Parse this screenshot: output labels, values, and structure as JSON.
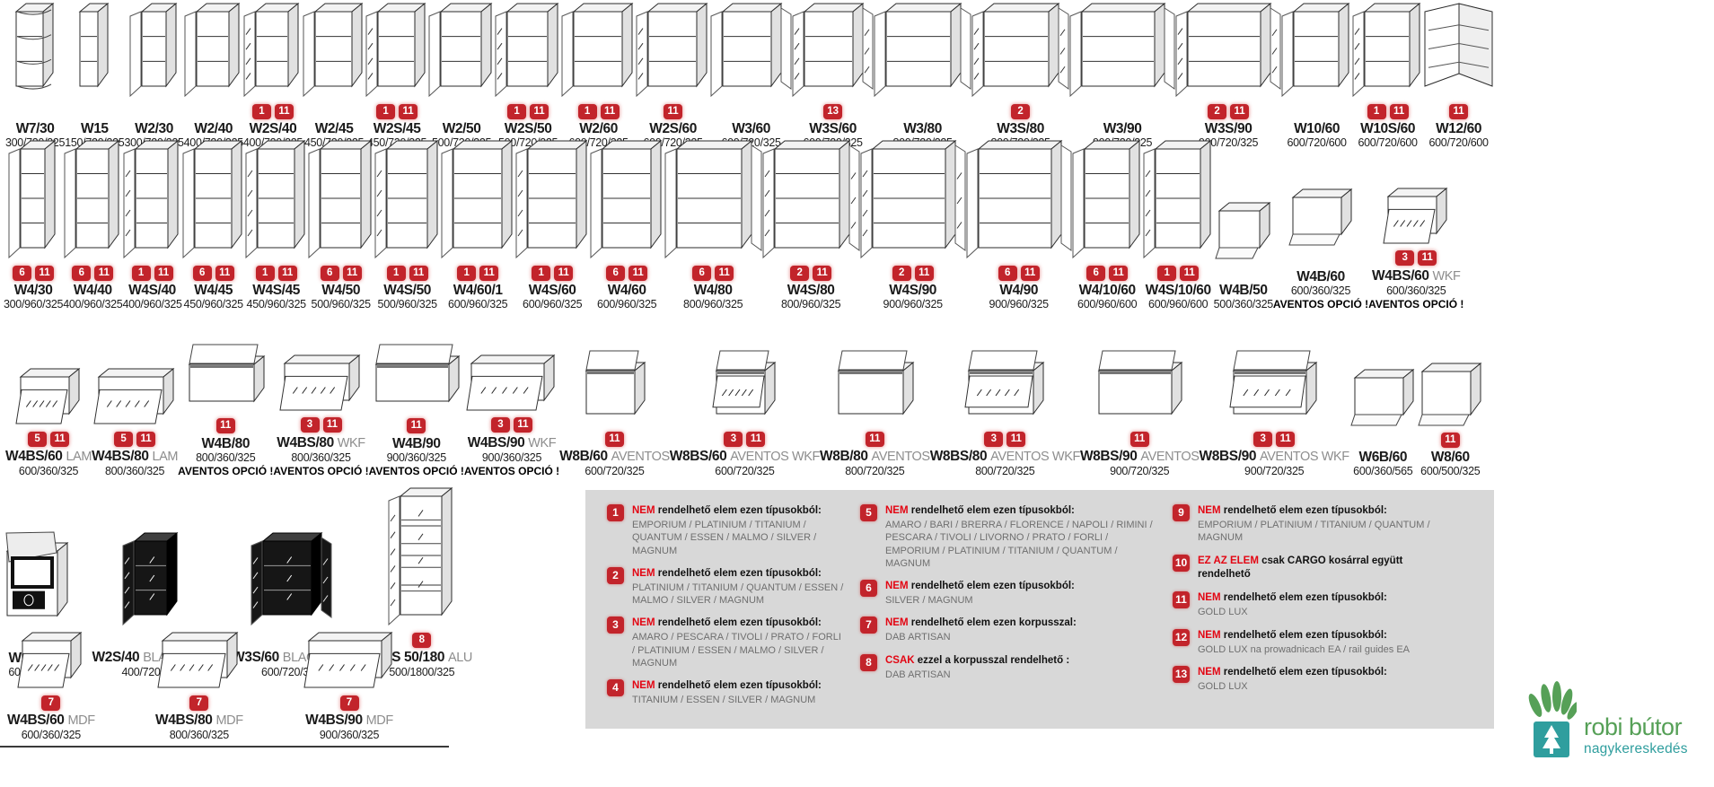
{
  "colors": {
    "badge_red": "#c2242b",
    "legend_bg": "#d8d8d8",
    "legend_red": "#e30613",
    "logo_green": "#56a057",
    "logo_teal": "#2f9e9e"
  },
  "rows": [
    {
      "name": "wall-cabinets-row-1",
      "items": [
        {
          "code": "W7/30",
          "suffix": "",
          "dims": "300/720/325",
          "badges": [],
          "type": "cornerEnd"
        },
        {
          "code": "W15",
          "suffix": "",
          "dims": "150/720/325",
          "badges": [],
          "type": "openNarrow"
        },
        {
          "code": "W2/30",
          "suffix": "",
          "dims": "300/720/325",
          "badges": [],
          "type": "door"
        },
        {
          "code": "W2/40",
          "suffix": "",
          "dims": "400/720/325",
          "badges": [],
          "type": "door"
        },
        {
          "code": "W2S/40",
          "suffix": "",
          "dims": "400/720/325",
          "badges": [
            "1",
            "11"
          ],
          "type": "glass"
        },
        {
          "code": "W2/45",
          "suffix": "",
          "dims": "450/720/325",
          "badges": [],
          "type": "door"
        },
        {
          "code": "W2S/45",
          "suffix": "",
          "dims": "450/720/325",
          "badges": [
            "1",
            "11"
          ],
          "type": "glass"
        },
        {
          "code": "W2/50",
          "suffix": "",
          "dims": "500/720/325",
          "badges": [],
          "type": "door"
        },
        {
          "code": "W2S/50",
          "suffix": "",
          "dims": "500/720/325",
          "badges": [
            "1",
            "11"
          ],
          "type": "glass"
        },
        {
          "code": "W2/60",
          "suffix": "",
          "dims": "600/720/325",
          "badges": [
            "1",
            "11"
          ],
          "type": "door"
        },
        {
          "code": "W2S/60",
          "suffix": "",
          "dims": "600/720/325",
          "badges": [
            "11"
          ],
          "type": "glass"
        },
        {
          "code": "W3/60",
          "suffix": "",
          "dims": "600/720/325",
          "badges": [],
          "type": "door2"
        },
        {
          "code": "W3S/60",
          "suffix": "",
          "dims": "600/720/325",
          "badges": [
            "13"
          ],
          "type": "glass2"
        },
        {
          "code": "W3/80",
          "suffix": "",
          "dims": "800/720/325",
          "badges": [],
          "type": "door2"
        },
        {
          "code": "W3S/80",
          "suffix": "",
          "dims": "800/720/325",
          "badges": [
            "2"
          ],
          "type": "glass2"
        },
        {
          "code": "W3/90",
          "suffix": "",
          "dims": "900/720/325",
          "badges": [],
          "type": "door2"
        },
        {
          "code": "W3S/90",
          "suffix": "",
          "dims": "900/720/325",
          "badges": [
            "2",
            "11"
          ],
          "type": "glass2"
        },
        {
          "code": "W10/60",
          "suffix": "",
          "dims": "600/720/600",
          "badges": [],
          "type": "cornerDoor"
        },
        {
          "code": "W10S/60",
          "suffix": "",
          "dims": "600/720/600",
          "badges": [
            "1",
            "11"
          ],
          "type": "cornerGlass"
        },
        {
          "code": "W12/60",
          "suffix": "",
          "dims": "600/720/600",
          "badges": [
            "11"
          ],
          "type": "cornerL"
        }
      ]
    },
    {
      "name": "wall-cabinets-row-2",
      "items": [
        {
          "code": "W4/30",
          "suffix": "",
          "dims": "300/960/325",
          "badges": [
            "6",
            "11"
          ],
          "type": "door"
        },
        {
          "code": "W4/40",
          "suffix": "",
          "dims": "400/960/325",
          "badges": [
            "6",
            "11"
          ],
          "type": "door"
        },
        {
          "code": "W4S/40",
          "suffix": "",
          "dims": "400/960/325",
          "badges": [
            "1",
            "11"
          ],
          "type": "glass"
        },
        {
          "code": "W4/45",
          "suffix": "",
          "dims": "450/960/325",
          "badges": [
            "6",
            "11"
          ],
          "type": "door"
        },
        {
          "code": "W4S/45",
          "suffix": "",
          "dims": "450/960/325",
          "badges": [
            "1",
            "11"
          ],
          "type": "glass"
        },
        {
          "code": "W4/50",
          "suffix": "",
          "dims": "500/960/325",
          "badges": [
            "6",
            "11"
          ],
          "type": "door"
        },
        {
          "code": "W4S/50",
          "suffix": "",
          "dims": "500/960/325",
          "badges": [
            "1",
            "11"
          ],
          "type": "glass"
        },
        {
          "code": "W4/60/1",
          "suffix": "",
          "dims": "600/960/325",
          "badges": [
            "1",
            "11"
          ],
          "type": "door"
        },
        {
          "code": "W4S/60",
          "suffix": "",
          "dims": "600/960/325",
          "badges": [
            "1",
            "11"
          ],
          "type": "glass"
        },
        {
          "code": "W4/60",
          "suffix": "",
          "dims": "600/960/325",
          "badges": [
            "6",
            "11"
          ],
          "type": "door"
        },
        {
          "code": "W4/80",
          "suffix": "",
          "dims": "800/960/325",
          "badges": [
            "6",
            "11"
          ],
          "type": "door2"
        },
        {
          "code": "W4S/80",
          "suffix": "",
          "dims": "800/960/325",
          "badges": [
            "2",
            "11"
          ],
          "type": "glass2"
        },
        {
          "code": "W4S/90",
          "suffix": "",
          "dims": "900/960/325",
          "badges": [
            "2",
            "11"
          ],
          "type": "glass2"
        },
        {
          "code": "W4/90",
          "suffix": "",
          "dims": "900/960/325",
          "badges": [
            "6",
            "11"
          ],
          "type": "door2"
        },
        {
          "code": "W4/10/60",
          "suffix": "",
          "dims": "600/960/600",
          "badges": [
            "6",
            "11"
          ],
          "type": "cornerDoor"
        },
        {
          "code": "W4S/10/60",
          "suffix": "",
          "dims": "600/960/600",
          "badges": [
            "1",
            "11"
          ],
          "type": "cornerGlass"
        },
        {
          "code": "W4B/50",
          "suffix": "",
          "dims": "500/360/325",
          "badges": [],
          "type": "flip"
        },
        {
          "code": "W4B/60",
          "suffix": "",
          "dims": "600/360/325",
          "badges": [],
          "type": "flip",
          "note": "AVENTOS OPCIÓ !"
        },
        {
          "code": "W4BS/60",
          "suffix": "WKF",
          "dims": "600/360/325",
          "badges": [
            "3",
            "11"
          ],
          "type": "flipGlass",
          "note": "AVENTOS OPCIÓ !"
        }
      ]
    },
    {
      "name": "wall-cabinets-row-3",
      "items": [
        {
          "code": "W4BS/60",
          "suffix": "LAM",
          "dims": "600/360/325",
          "badges": [
            "5",
            "11"
          ],
          "type": "flipGlass"
        },
        {
          "code": "W4BS/80",
          "suffix": "LAM",
          "dims": "800/360/325",
          "badges": [
            "5",
            "11"
          ],
          "type": "flipGlass"
        },
        {
          "code": "W4B/80",
          "suffix": "",
          "dims": "800/360/325",
          "badges": [
            "11"
          ],
          "type": "flipOpen",
          "note": "AVENTOS OPCIÓ !"
        },
        {
          "code": "W4BS/80",
          "suffix": "WKF",
          "dims": "800/360/325",
          "badges": [
            "3",
            "11"
          ],
          "type": "flipGlass",
          "note": "AVENTOS OPCIÓ !"
        },
        {
          "code": "W4B/90",
          "suffix": "",
          "dims": "900/360/325",
          "badges": [
            "11"
          ],
          "type": "flipOpen",
          "note": "AVENTOS OPCIÓ !"
        },
        {
          "code": "W4BS/90",
          "suffix": "WKF",
          "dims": "900/360/325",
          "badges": [
            "3",
            "11"
          ],
          "type": "flipGlass",
          "note": "AVENTOS OPCIÓ !"
        },
        {
          "code": "W8B/60",
          "suffix": "AVENTOS",
          "dims": "600/720/325",
          "badges": [
            "11"
          ],
          "type": "flipOpen"
        },
        {
          "code": "W8BS/60",
          "suffix": "AVENTOS WKF",
          "dims": "600/720/325",
          "badges": [
            "3",
            "11"
          ],
          "type": "flipOpenGlass"
        },
        {
          "code": "W8B/80",
          "suffix": "AVENTOS",
          "dims": "800/720/325",
          "badges": [
            "11"
          ],
          "type": "flipOpen"
        },
        {
          "code": "W8BS/80",
          "suffix": "AVENTOS WKF",
          "dims": "800/720/325",
          "badges": [
            "3",
            "11"
          ],
          "type": "flipOpenGlass"
        },
        {
          "code": "W8BS/90",
          "suffix": "AVENTOS",
          "dims": "900/720/325",
          "badges": [
            "11"
          ],
          "type": "flipOpen"
        },
        {
          "code": "W8BS/90",
          "suffix": "AVENTOS WKF",
          "dims": "900/720/325",
          "badges": [
            "3",
            "11"
          ],
          "type": "flipOpenGlass"
        },
        {
          "code": "W6B/60",
          "suffix": "",
          "dims": "600/360/565",
          "badges": [],
          "type": "flip"
        },
        {
          "code": "W8/60",
          "suffix": "",
          "dims": "600/500/325",
          "badges": [
            "11"
          ],
          "type": "flip"
        }
      ]
    },
    {
      "name": "special-cabinets-row",
      "items": [
        {
          "code": "W2MK/60",
          "suffix": "",
          "dims": "600/720/325",
          "badges": [],
          "type": "micro"
        },
        {
          "code": "W2S/40",
          "suffix": "BLACK ALU",
          "dims": "400/720/325",
          "badges": [],
          "type": "blackGlass"
        },
        {
          "code": "W3S/60",
          "suffix": "BLACK ALU",
          "dims": "600/720/325",
          "badges": [],
          "type": "blackGlass2"
        },
        {
          "code": "W5S 50/180",
          "suffix": "ALU",
          "dims": "500/1800/325",
          "badges": [
            "8"
          ],
          "type": "tallGlass"
        }
      ]
    },
    {
      "name": "mdf-cabinets-row",
      "items": [
        {
          "code": "W4BS/60",
          "suffix": "MDF",
          "dims": "600/360/325",
          "badges": [
            "7"
          ],
          "type": "flipGlass"
        },
        {
          "code": "W4BS/80",
          "suffix": "MDF",
          "dims": "800/360/325",
          "badges": [
            "7"
          ],
          "type": "flipGlass"
        },
        {
          "code": "W4BS/90",
          "suffix": "MDF",
          "dims": "900/360/325",
          "badges": [
            "7"
          ],
          "type": "flipGlass"
        }
      ]
    }
  ],
  "legend": {
    "columns": [
      {
        "entries": [
          {
            "num": "1",
            "lead": "NEM",
            "head": " rendelhető elem ezen típusokból:",
            "body": "EMPORIUM / PLATINIUM / TITANIUM / QUANTUM / ESSEN / MALMO / SILVER / MAGNUM"
          },
          {
            "num": "2",
            "lead": "NEM",
            "head": " rendelhető elem ezen típusokból:",
            "body": "PLATINIUM / TITANIUM / QUANTUM / ESSEN / MALMO / SILVER / MAGNUM"
          },
          {
            "num": "3",
            "lead": "NEM",
            "head": " rendelhető elem ezen típusokból:",
            "body": "AMARO / PESCARA / TIVOLI / PRATO / FORLI / PLATINIUM / ESSEN / MALMO / SILVER / MAGNUM"
          },
          {
            "num": "4",
            "lead": "NEM",
            "head": " rendelhető elem ezen típusokból:",
            "body": "TITANIUM /  ESSEN / SILVER / MAGNUM"
          }
        ]
      },
      {
        "entries": [
          {
            "num": "5",
            "lead": "NEM",
            "head": " rendelhető elem ezen típusokból:",
            "body": "AMARO / BARI / BRERRA / FLORENCE / NAPOLI / RIMINI / PESCARA / TIVOLI / LIVORNO / PRATO / FORLI / EMPORIUM / PLATINIUM / TITANIUM / QUANTUM / MAGNUM"
          },
          {
            "num": "6",
            "lead": "NEM",
            "head": " rendelhető elem ezen típusokból:",
            "body": "SILVER / MAGNUM"
          },
          {
            "num": "7",
            "lead": "NEM",
            "head": " rendelhető elem ezen korpusszal:",
            "body": "DAB ARTISAN"
          },
          {
            "num": "8",
            "lead": "CSAK",
            "head": " ezzel a korpusszal rendelhető :",
            "body": "DAB ARTISAN"
          }
        ]
      },
      {
        "entries": [
          {
            "num": "9",
            "lead": "NEM",
            "head": " rendelhető elem ezen típusokból:",
            "body": "EMPORIUM / PLATINIUM / TITANIUM / QUANTUM / MAGNUM"
          },
          {
            "num": "10",
            "lead": "EZ AZ ELEM",
            "head": " csak CARGO kosárral  együtt",
            "body": "rendelhető",
            "body_bold": true
          },
          {
            "num": "11",
            "lead": "NEM",
            "head": " rendelhető elem ezen típusokból:",
            "body": "GOLD LUX"
          },
          {
            "num": "12",
            "lead": "NEM",
            "head": " rendelhető elem ezen típusokból:",
            "body": "GOLD LUX na prowadnicach EA / rail guides EA"
          },
          {
            "num": "13",
            "lead": "NEM",
            "head": " rendelhető elem ezen típusokból:",
            "body": "GOLD LUX"
          }
        ]
      }
    ]
  },
  "logo": {
    "name": "robi bútor",
    "sub": "nagykereskedés"
  }
}
